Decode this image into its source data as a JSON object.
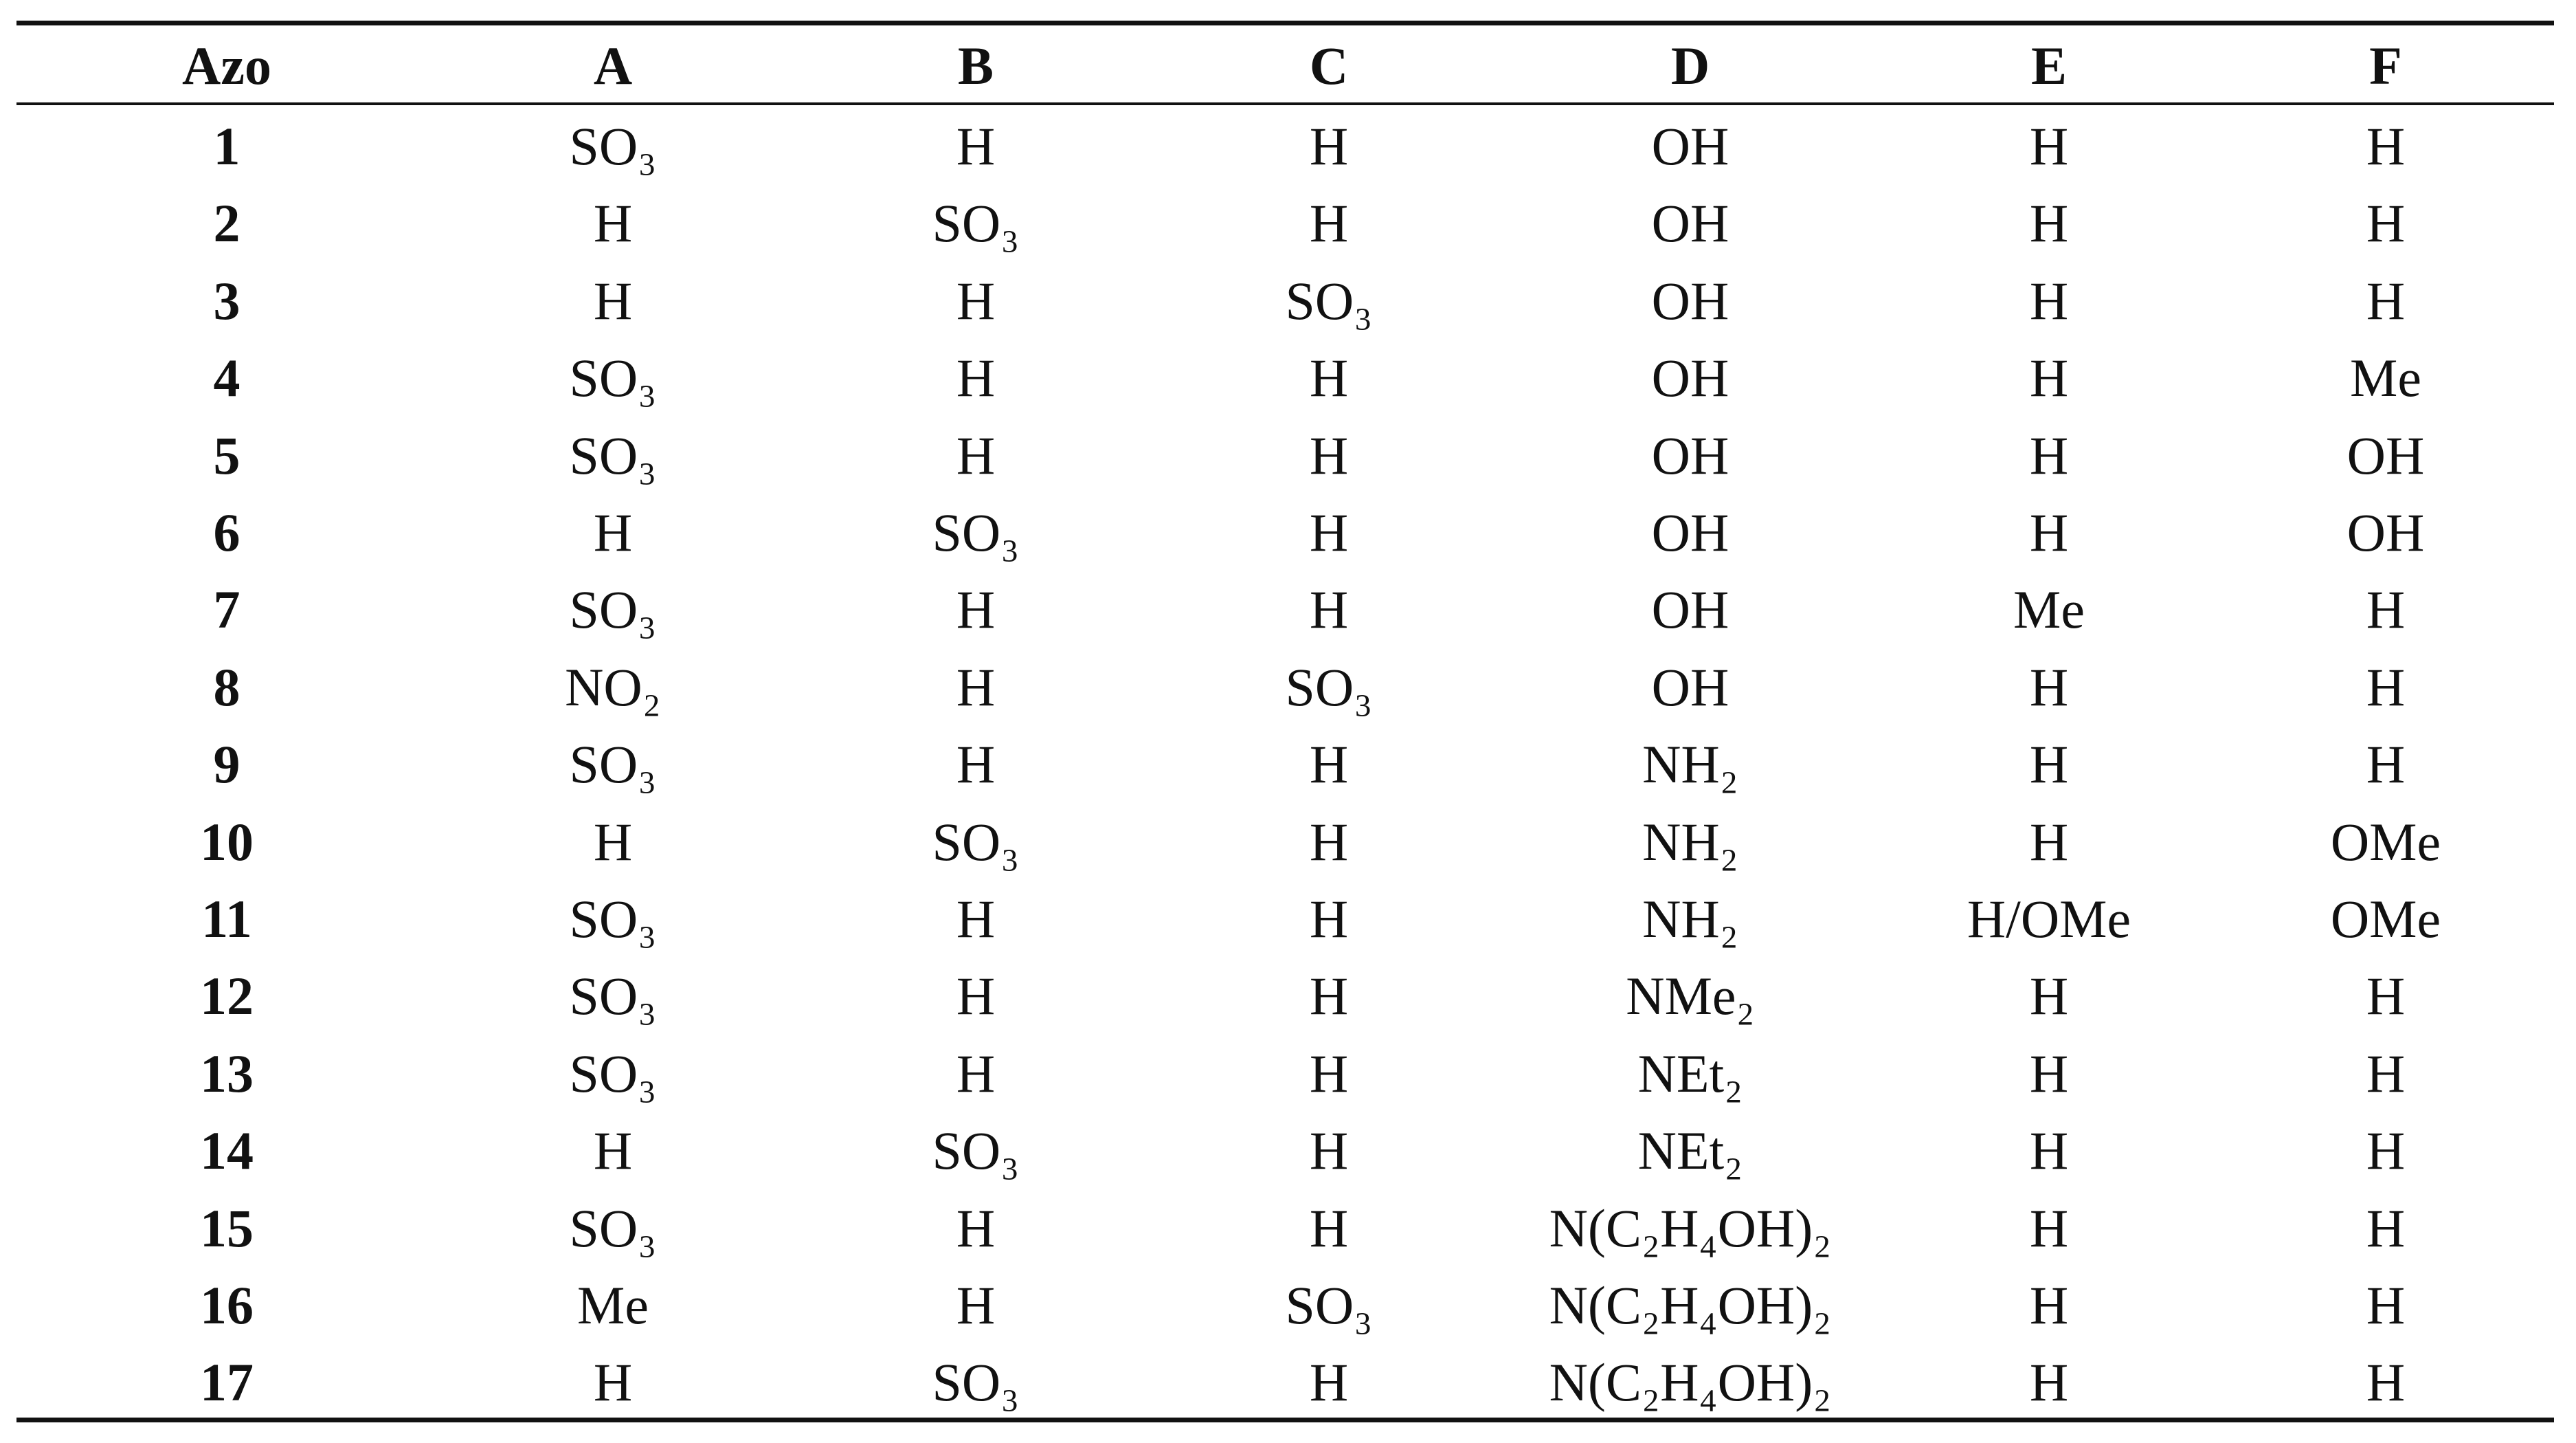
{
  "table": {
    "header": [
      "Azo",
      "A",
      "B",
      "C",
      "D",
      "E",
      "F"
    ],
    "rows": [
      [
        "1",
        "SO₃",
        "H",
        "H",
        "OH",
        "H",
        "H"
      ],
      [
        "2",
        "H",
        "SO₃",
        "H",
        "OH",
        "H",
        "H"
      ],
      [
        "3",
        "H",
        "H",
        "SO₃",
        "OH",
        "H",
        "H"
      ],
      [
        "4",
        "SO₃",
        "H",
        "H",
        "OH",
        "H",
        "Me"
      ],
      [
        "5",
        "SO₃",
        "H",
        "H",
        "OH",
        "H",
        "OH"
      ],
      [
        "6",
        "H",
        "SO₃",
        "H",
        "OH",
        "H",
        "OH"
      ],
      [
        "7",
        "SO₃",
        "H",
        "H",
        "OH",
        "Me",
        "H"
      ],
      [
        "8",
        "NO₂",
        "H",
        "SO₃",
        "OH",
        "H",
        "H"
      ],
      [
        "9",
        "SO₃",
        "H",
        "H",
        "NH₂",
        "H",
        "H"
      ],
      [
        "10",
        "H",
        "SO₃",
        "H",
        "NH₂",
        "H",
        "OMe"
      ],
      [
        "11",
        "SO₃",
        "H",
        "H",
        "NH₂",
        "H/OMe",
        "OMe"
      ],
      [
        "12",
        "SO₃",
        "H",
        "H",
        "NMe₂",
        "H",
        "H"
      ],
      [
        "13",
        "SO₃",
        "H",
        "H",
        "NEt₂",
        "H",
        "H"
      ],
      [
        "14",
        "H",
        "SO₃",
        "H",
        "NEt₂",
        "H",
        "H"
      ],
      [
        "15",
        "SO₃",
        "H",
        "H",
        "N(C₂H₄OH)₂",
        "H",
        "H"
      ],
      [
        "16",
        "Me",
        "H",
        "SO₃",
        "N(C₂H₄OH)₂",
        "H",
        "H"
      ],
      [
        "17",
        "H",
        "SO₃",
        "H",
        "N(C₂H₄OH)₂",
        "H",
        "H"
      ]
    ]
  }
}
